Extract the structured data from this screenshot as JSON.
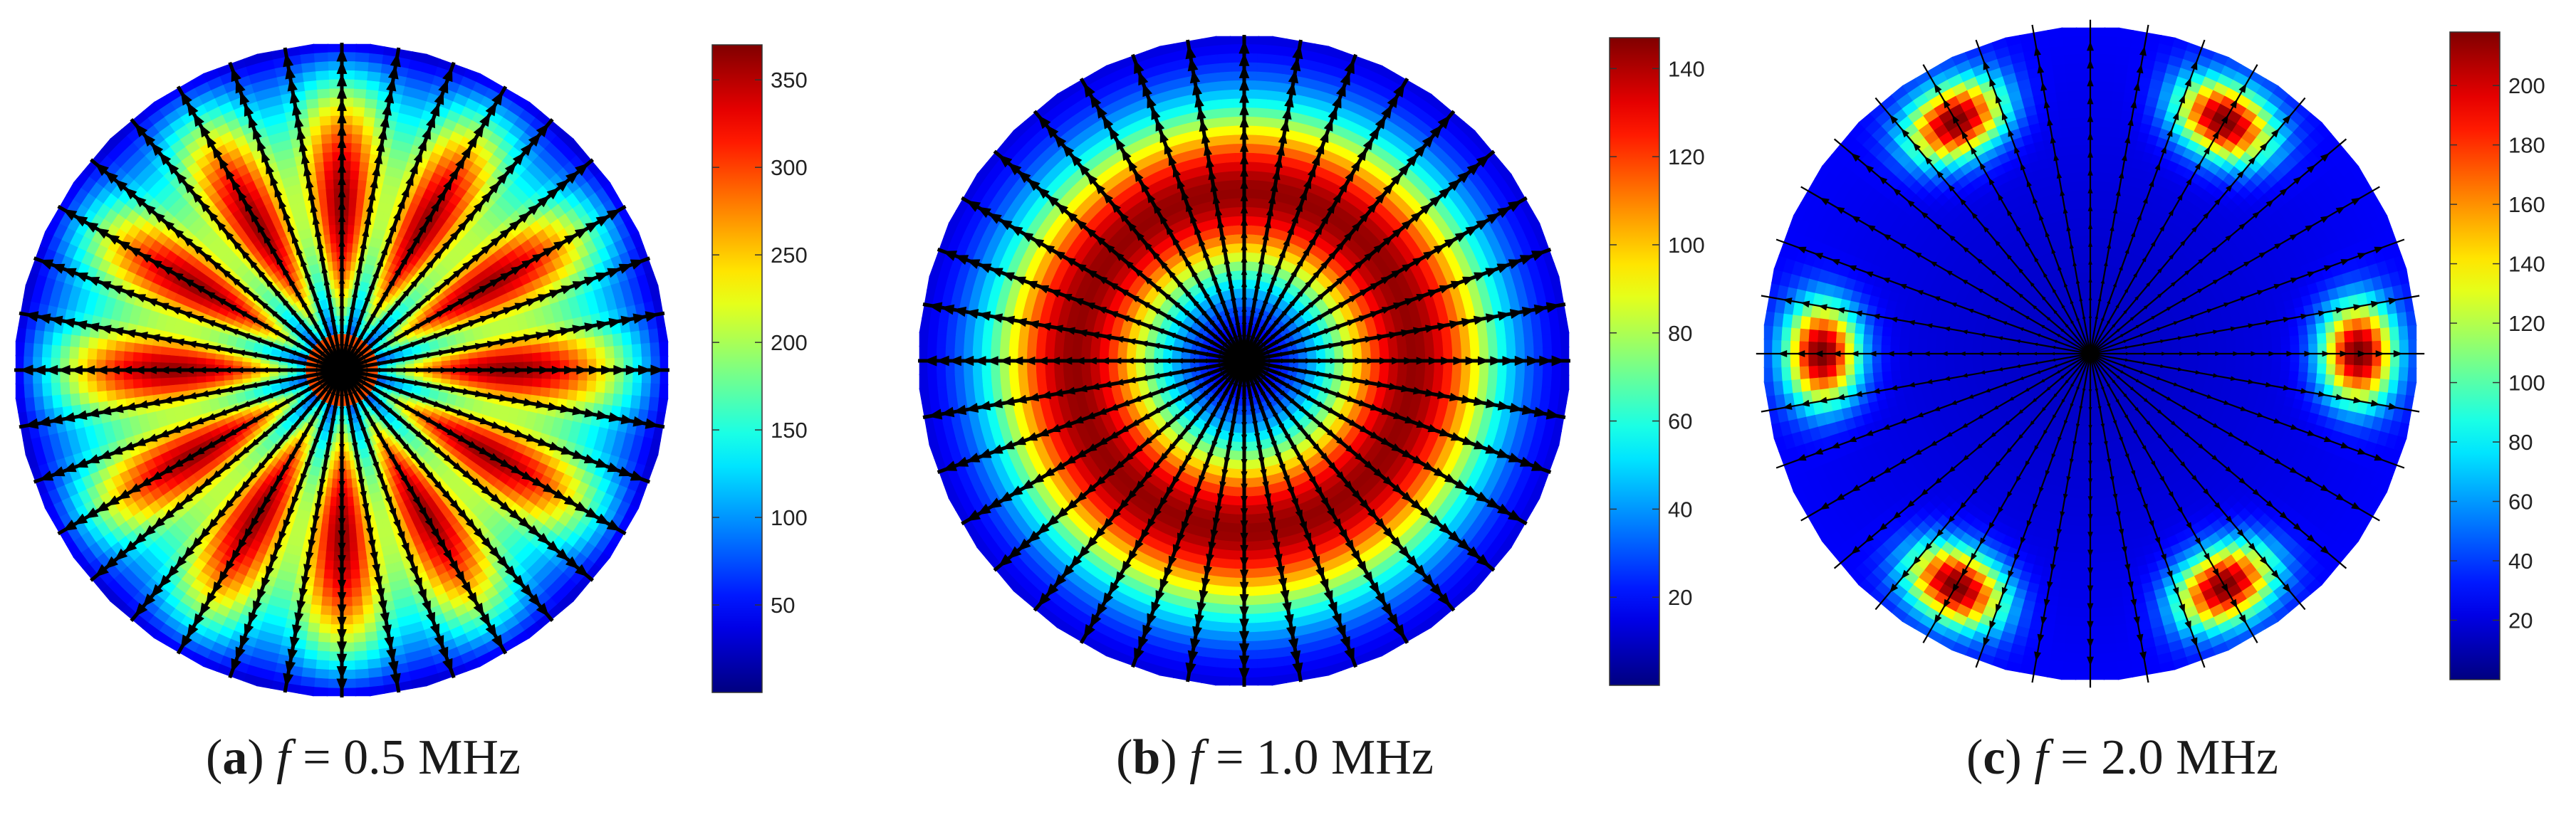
{
  "chart_data": [
    {
      "type": "heatmap",
      "title": "",
      "caption": {
        "letter": "a",
        "variable": "f",
        "value": "= 0.5 MHz"
      },
      "colorbar": {
        "min": 0,
        "max": 370,
        "ticks": [
          50,
          100,
          150,
          200,
          250,
          300,
          350
        ]
      },
      "field": {
        "pattern": "inner",
        "angular_lobes": 12,
        "peak_angle_deg": 90
      },
      "vectors": {
        "spokes": 36,
        "density": "dense"
      }
    },
    {
      "type": "heatmap",
      "title": "",
      "caption": {
        "letter": "b",
        "variable": "f",
        "value": "= 1.0 MHz"
      },
      "colorbar": {
        "min": 0,
        "max": 147,
        "ticks": [
          20,
          40,
          60,
          80,
          100,
          120,
          140
        ]
      },
      "field": {
        "pattern": "ring",
        "angular_lobes": 0,
        "peak_angle_deg": 0
      },
      "vectors": {
        "spokes": 36,
        "density": "dense"
      }
    },
    {
      "type": "heatmap",
      "title": "",
      "caption": {
        "letter": "c",
        "variable": "f",
        "value": "= 2.0 MHz"
      },
      "colorbar": {
        "min": 0,
        "max": 218,
        "ticks": [
          20,
          40,
          60,
          80,
          100,
          120,
          140,
          160,
          180,
          200
        ]
      },
      "field": {
        "pattern": "edge-lobes",
        "angular_lobes": 6,
        "peak_angle_deg": 0
      },
      "vectors": {
        "spokes": 36,
        "density": "sparse"
      }
    }
  ]
}
